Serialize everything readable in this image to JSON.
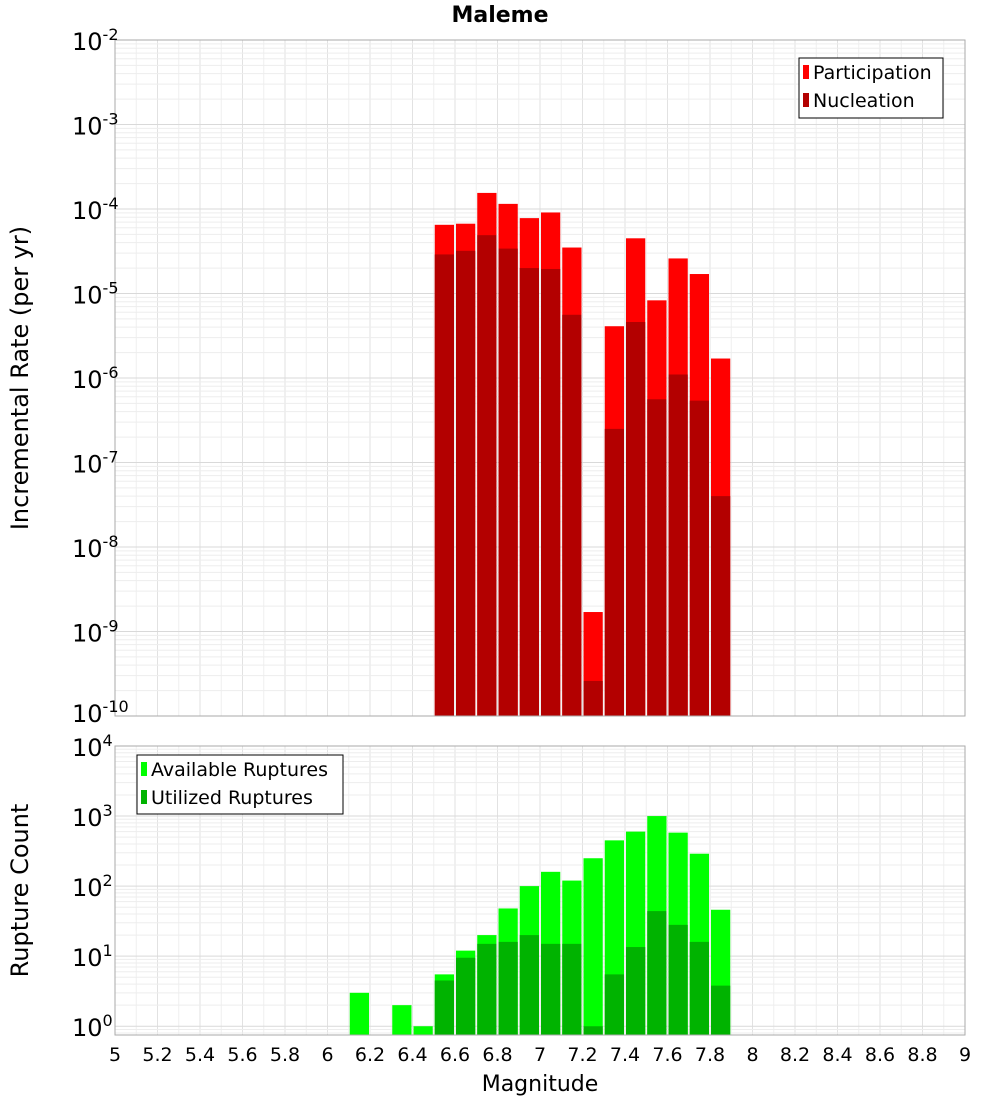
{
  "chart_data": [
    {
      "type": "bar",
      "title": "Maleme",
      "ylabel": "Incremental Rate (per yr)",
      "xlabel": "",
      "scale_y": "log",
      "ylim": [
        1e-10,
        0.01
      ],
      "xlim": [
        5,
        9
      ],
      "bar_width": 0.1,
      "grid": true,
      "legend_position": "top-right",
      "y_ticks": [
        {
          "base": "10",
          "exp": "-10"
        },
        {
          "base": "10",
          "exp": "-9"
        },
        {
          "base": "10",
          "exp": "-8"
        },
        {
          "base": "10",
          "exp": "-7"
        },
        {
          "base": "10",
          "exp": "-6"
        },
        {
          "base": "10",
          "exp": "-5"
        },
        {
          "base": "10",
          "exp": "-4"
        },
        {
          "base": "10",
          "exp": "-3"
        },
        {
          "base": "10",
          "exp": "-2"
        }
      ],
      "x": [
        6.55,
        6.65,
        6.75,
        6.85,
        6.95,
        7.05,
        7.15,
        7.25,
        7.35,
        7.45,
        7.55,
        7.65,
        7.75,
        7.85
      ],
      "series": [
        {
          "name": "Participation",
          "color": "#ff0000",
          "values": [
            6.5e-05,
            6.7e-05,
            0.000155,
            0.000115,
            7.8e-05,
            9.1e-05,
            3.5e-05,
            1.7e-09,
            4.1e-06,
            4.5e-05,
            8.3e-06,
            2.6e-05,
            1.7e-05,
            1.7e-06
          ]
        },
        {
          "name": "Nucleation",
          "color": "#b30000",
          "values": [
            2.9e-05,
            3.2e-05,
            4.9e-05,
            3.4e-05,
            2e-05,
            1.95e-05,
            5.6e-06,
            2.6e-10,
            2.5e-07,
            4.6e-06,
            5.6e-07,
            1.1e-06,
            5.4e-07,
            4e-08
          ]
        }
      ]
    },
    {
      "type": "bar",
      "title": "",
      "ylabel": "Rupture Count",
      "xlabel": "Magnitude",
      "scale_y": "log",
      "ylim": [
        0.75,
        10000
      ],
      "xlim": [
        5,
        9
      ],
      "bar_width": 0.1,
      "grid": true,
      "legend_position": "top-left",
      "y_ticks": [
        {
          "base": "10",
          "exp": "0"
        },
        {
          "base": "10",
          "exp": "1"
        },
        {
          "base": "10",
          "exp": "2"
        },
        {
          "base": "10",
          "exp": "3"
        },
        {
          "base": "10",
          "exp": "4"
        }
      ],
      "x_ticks": [
        "5",
        "5.2",
        "5.4",
        "5.6",
        "5.8",
        "6",
        "6.2",
        "6.4",
        "6.6",
        "6.8",
        "7",
        "7.2",
        "7.4",
        "7.6",
        "7.8",
        "8",
        "8.2",
        "8.4",
        "8.6",
        "8.8",
        "9"
      ],
      "x": [
        6.15,
        6.35,
        6.45,
        6.55,
        6.65,
        6.75,
        6.85,
        6.95,
        7.05,
        7.15,
        7.25,
        7.35,
        7.45,
        7.55,
        7.65,
        7.75,
        7.85
      ],
      "series": [
        {
          "name": "Available Ruptures",
          "color": "#00ff00",
          "values": [
            3,
            2,
            1,
            5.5,
            12,
            20,
            48,
            100,
            160,
            120,
            250,
            450,
            600,
            1000,
            580,
            290,
            46
          ]
        },
        {
          "name": "Utilized Ruptures",
          "color": "#00b300",
          "values": [
            null,
            null,
            null,
            4.5,
            9.5,
            15,
            16,
            20,
            15,
            15,
            1,
            5.5,
            13.5,
            44,
            28,
            16,
            3.8
          ]
        }
      ]
    }
  ]
}
